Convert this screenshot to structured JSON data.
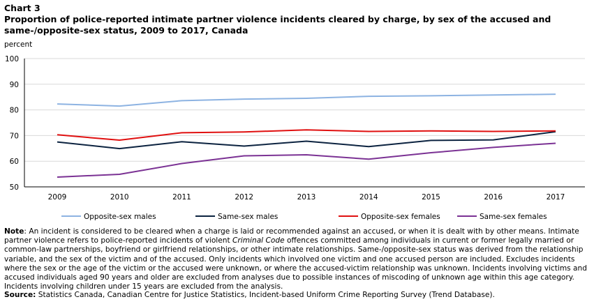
{
  "header": {
    "chart_number": "Chart 3",
    "title": "Proportion of police-reported intimate partner violence incidents cleared by charge, by sex of the accused and same-/opposite-sex status, 2009 to 2017, Canada",
    "y_unit": "percent"
  },
  "chart_data": {
    "type": "line",
    "x": [
      "2009",
      "2010",
      "2011",
      "2012",
      "2013",
      "2014",
      "2015",
      "2016",
      "2017"
    ],
    "ylim": [
      50,
      100
    ],
    "yticks": [
      50,
      60,
      70,
      80,
      90,
      100
    ],
    "ylabel": "percent",
    "grid": true,
    "legend_position": "bottom",
    "series": [
      {
        "name": "Opposite-sex males",
        "color": "#8db3e2",
        "values": [
          82.3,
          81.5,
          83.6,
          84.2,
          84.5,
          85.3,
          85.5,
          85.8,
          86.1
        ]
      },
      {
        "name": "Same-sex males",
        "color": "#0c2340",
        "values": [
          67.5,
          64.9,
          67.6,
          65.9,
          67.8,
          65.7,
          68.1,
          68.3,
          71.5
        ]
      },
      {
        "name": "Opposite-sex females",
        "color": "#e01010",
        "values": [
          70.3,
          68.2,
          71.1,
          71.4,
          72.2,
          71.6,
          71.8,
          71.6,
          71.8
        ]
      },
      {
        "name": "Same-sex females",
        "color": "#7b3294",
        "values": [
          53.8,
          54.9,
          59.1,
          62.1,
          62.5,
          60.8,
          63.3,
          65.4,
          67.0
        ]
      }
    ]
  },
  "note": {
    "label": "Note",
    "text_before_italic": ": An incident is considered to be cleared when a charge is laid or recommended against an accused, or when it is dealt with by other means. Intimate partner violence refers to police-reported incidents of violent ",
    "italic": "Criminal Code",
    "text_after_italic": " offences committed among individuals in current or former legally married or common-law partnerships, boyfriend or girlfriend relationships, or other intimate relationships. Same-/opposite-sex status was derived from the relationship variable, and the sex of the victim and of the accused. Only incidents which involved one victim and one accused person are included. Excludes incidents where the sex or the age of the victim or the accused were unknown, or where the accused-victim relationship was unknown. Incidents involving victims and accused individuals aged 90 years and older are excluded from analyses due to possible instances of miscoding of unknown age within this age category. Incidents involving children under 15 years are excluded from the analysis."
  },
  "source": {
    "label": "Source:",
    "text": " Statistics Canada, Canadian Centre for Justice Statistics, Incident-based Uniform Crime Reporting Survey (Trend Database)."
  }
}
